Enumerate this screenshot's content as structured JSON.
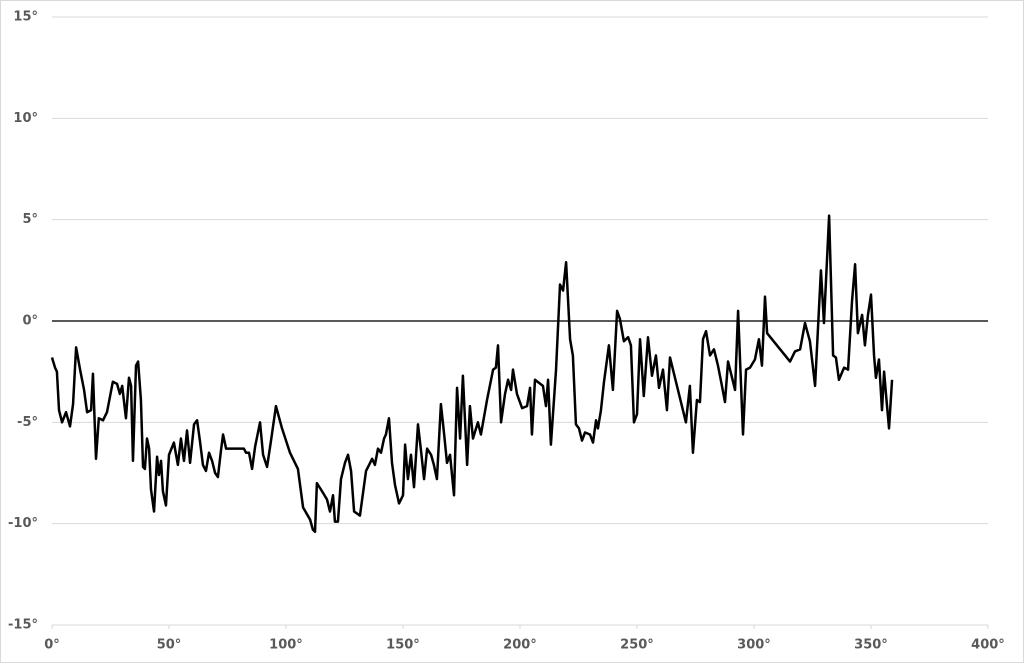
{
  "chart_data": {
    "type": "line",
    "grid": true,
    "color": "#000000",
    "x": [
      0,
      1.3,
      2.1,
      3,
      4.3,
      6,
      7.7,
      9,
      10.3,
      12,
      13.7,
      15,
      16.7,
      17.5,
      18.8,
      20,
      21.8,
      23.5,
      26,
      27.8,
      29,
      30,
      31.6,
      32.9,
      33.8,
      34.6,
      35.9,
      36.8,
      38,
      38.9,
      39.7,
      40.6,
      41.5,
      42.3,
      43.6,
      44.9,
      45.7,
      46.6,
      47.4,
      48.7,
      50,
      52.1,
      53.8,
      55.1,
      56.4,
      57.7,
      59,
      60.7,
      62,
      63.2,
      64.5,
      65.8,
      67.1,
      68.4,
      69.7,
      70.9,
      72.2,
      73.1,
      74.4,
      82,
      82.9,
      84.2,
      85.5,
      86.8,
      88.9,
      90.2,
      91.9,
      93.6,
      95.7,
      98.3,
      101.7,
      105.1,
      107.3,
      110.3,
      111.5,
      112.4,
      113.2,
      115.4,
      117.5,
      118.8,
      120.1,
      120.9,
      122.2,
      123.5,
      125.2,
      126.5,
      127.8,
      129.1,
      131.6,
      134.2,
      135.5,
      136.8,
      138,
      139.3,
      140.6,
      141.9,
      142.7,
      144,
      145.3,
      146.6,
      148.3,
      150,
      150.9,
      152.1,
      153.4,
      154.7,
      156.4,
      157.7,
      159,
      160.3,
      162,
      163.2,
      164.5,
      166.2,
      167.5,
      168.8,
      170.1,
      171.8,
      173.1,
      174.4,
      175.6,
      177.4,
      178.6,
      179.9,
      182,
      183.3,
      185.9,
      188.5,
      189.7,
      190.6,
      191.9,
      193.6,
      194.9,
      196.2,
      197,
      198.7,
      200.9,
      203,
      204.3,
      205.1,
      206.4,
      209.8,
      211.1,
      212,
      213.2,
      215.4,
      217.1,
      218.4,
      219.7,
      221.4,
      222.6,
      223.9,
      225.2,
      226.5,
      227.8,
      229.9,
      231.2,
      232.5,
      233.3,
      234.6,
      235.9,
      238,
      239.7,
      241.5,
      242.7,
      244.4,
      246.2,
      247.4,
      248.7,
      250,
      251.3,
      252.9,
      254.7,
      256.4,
      258.1,
      259.4,
      261.1,
      262.8,
      264.1,
      270.9,
      272.6,
      273.9,
      275.6,
      276.9,
      278.2,
      279.5,
      281.2,
      282.9,
      284.6,
      286.3,
      287.6,
      288.9,
      290.2,
      291.9,
      293.2,
      295.3,
      296.6,
      298.3,
      300.4,
      302.1,
      303.4,
      304.7,
      305.6,
      315.4,
      317.5,
      319.7,
      321.8,
      323.9,
      326.1,
      328.6,
      329.9,
      332.1,
      333.8,
      335,
      336.3,
      338.5,
      340.2,
      341.9,
      343.2,
      344.4,
      346.2,
      347.4,
      348.7,
      350,
      351.3,
      352.1,
      353.4,
      354.7,
      355.6,
      356.4,
      357.7,
      359
    ],
    "values": [
      -1.8,
      -2.3,
      -2.5,
      -4.4,
      -5,
      -4.5,
      -5.2,
      -4.1,
      -1.3,
      -2.4,
      -3.4,
      -4.5,
      -4.4,
      -2.6,
      -6.8,
      -4.8,
      -4.9,
      -4.5,
      -3,
      -3.1,
      -3.6,
      -3.2,
      -4.8,
      -2.8,
      -3.2,
      -6.9,
      -2.2,
      -2,
      -3.9,
      -7.2,
      -7.3,
      -5.8,
      -6.3,
      -8.3,
      -9.4,
      -6.7,
      -7.6,
      -6.9,
      -8.4,
      -9.1,
      -6.6,
      -6,
      -7.1,
      -5.8,
      -6.9,
      -5.4,
      -7,
      -5.1,
      -4.9,
      -5.9,
      -7.1,
      -7.4,
      -6.5,
      -6.9,
      -7.5,
      -7.7,
      -6.4,
      -5.6,
      -6.3,
      -6.3,
      -6.5,
      -6.5,
      -7.3,
      -6.2,
      -5,
      -6.6,
      -7.2,
      -5.9,
      -4.2,
      -5.3,
      -6.5,
      -7.3,
      -9.2,
      -9.8,
      -10.3,
      -10.4,
      -8,
      -8.4,
      -8.8,
      -9.4,
      -8.6,
      -9.9,
      -9.9,
      -7.8,
      -7,
      -6.6,
      -7.4,
      -9.4,
      -9.6,
      -7.4,
      -7.1,
      -6.8,
      -7.1,
      -6.3,
      -6.5,
      -5.8,
      -5.6,
      -4.8,
      -7,
      -8.1,
      -9,
      -8.6,
      -6.1,
      -7.8,
      -6.6,
      -8.2,
      -5.1,
      -6.4,
      -7.8,
      -6.3,
      -6.6,
      -7.1,
      -7.8,
      -4.1,
      -5.5,
      -7,
      -6.6,
      -8.6,
      -3.3,
      -5.8,
      -2.7,
      -7.1,
      -4.2,
      -5.8,
      -5,
      -5.6,
      -3.9,
      -2.4,
      -2.3,
      -1.2,
      -5,
      -3.6,
      -2.9,
      -3.4,
      -2.4,
      -3.6,
      -4.3,
      -4.2,
      -3.3,
      -5.6,
      -2.9,
      -3.2,
      -4.2,
      -2.9,
      -6.1,
      -2.4,
      1.8,
      1.5,
      2.9,
      -0.9,
      -1.7,
      -5.1,
      -5.3,
      -5.9,
      -5.5,
      -5.6,
      -6,
      -4.9,
      -5.3,
      -4.4,
      -3,
      -1.2,
      -3.4,
      0.5,
      0.1,
      -1,
      -0.8,
      -1.2,
      -5,
      -4.6,
      -0.9,
      -3.7,
      -0.8,
      -2.7,
      -1.7,
      -3.3,
      -2.4,
      -4.4,
      -1.8,
      -5,
      -3.2,
      -6.5,
      -3.9,
      -4,
      -0.9,
      -0.5,
      -1.7,
      -1.4,
      -2.2,
      -3.2,
      -4,
      -2,
      -2.6,
      -3.4,
      0.5,
      -5.6,
      -2.4,
      -2.3,
      -1.9,
      -0.9,
      -2.2,
      1.2,
      -0.6,
      -2,
      -1.5,
      -1.4,
      -0.1,
      -1,
      -3.2,
      2.5,
      -0.1,
      5.2,
      -1.7,
      -1.8,
      -2.9,
      -2.3,
      -2.4,
      1,
      2.8,
      -0.6,
      0.3,
      -1.2,
      0.3,
      1.3,
      -1.7,
      -2.8,
      -1.9,
      -4.4,
      -2.5,
      -3.6,
      -5.3,
      -2.9
    ],
    "xlim": [
      0,
      400
    ],
    "xticks": [
      {
        "value": 0,
        "label": "0°"
      },
      {
        "value": 50,
        "label": "50°"
      },
      {
        "value": 100,
        "label": "100°"
      },
      {
        "value": 150,
        "label": "150°"
      },
      {
        "value": 200,
        "label": "200°"
      },
      {
        "value": 250,
        "label": "250°"
      },
      {
        "value": 300,
        "label": "300°"
      },
      {
        "value": 350,
        "label": "350°"
      },
      {
        "value": 400,
        "label": "400°"
      }
    ],
    "ylim": [
      -15,
      15
    ],
    "yticks": [
      {
        "value": -15,
        "label": "-15°"
      },
      {
        "value": -10,
        "label": "-10°"
      },
      {
        "value": -5,
        "label": "-5°"
      },
      {
        "value": 0,
        "label": "0°"
      },
      {
        "value": 5,
        "label": "5°"
      },
      {
        "value": 10,
        "label": "10°"
      },
      {
        "value": 15,
        "label": "15°"
      }
    ]
  }
}
